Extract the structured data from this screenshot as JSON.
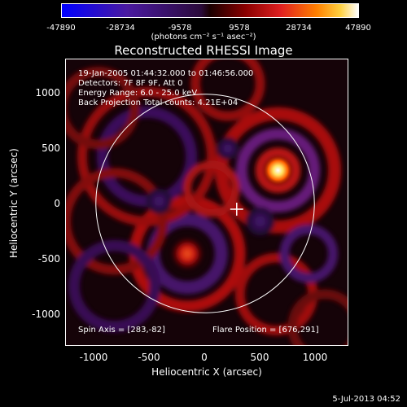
{
  "colorbar": {
    "ticks": [
      "-47890",
      "-28734",
      "-9578",
      "9578",
      "28734",
      "47890"
    ],
    "units_html": "(photons cm⁻² s⁻¹ asec⁻²)"
  },
  "title": "Reconstructed RHESSI Image",
  "info": {
    "time_range": "19-Jan-2005 01:44:32.000 to 01:46:56.000",
    "detectors": "Detectors: 7F 8F 9F, Att 0",
    "energy": "Energy Range: 6.0 - 25.0 keV",
    "method": "Back Projection     Total counts: 4.21E+04"
  },
  "footer": {
    "spin_axis": "Spin Axis = [283,-82]",
    "flare_position": "Flare Position = [676,291]"
  },
  "axes": {
    "xlabel": "Heliocentric X (arcsec)",
    "ylabel": "Heliocentric Y (arcsec)",
    "xticks": [
      "-1000",
      "-500",
      "0",
      "500",
      "1000"
    ],
    "yticks": [
      "1000",
      "500",
      "0",
      "-500",
      "-1000"
    ]
  },
  "timestamp": "5-Jul-2013 04:52",
  "colors": {
    "bright": "#ffffff",
    "red": "#c81010",
    "purple": "#3a1060",
    "black": "#000000"
  }
}
